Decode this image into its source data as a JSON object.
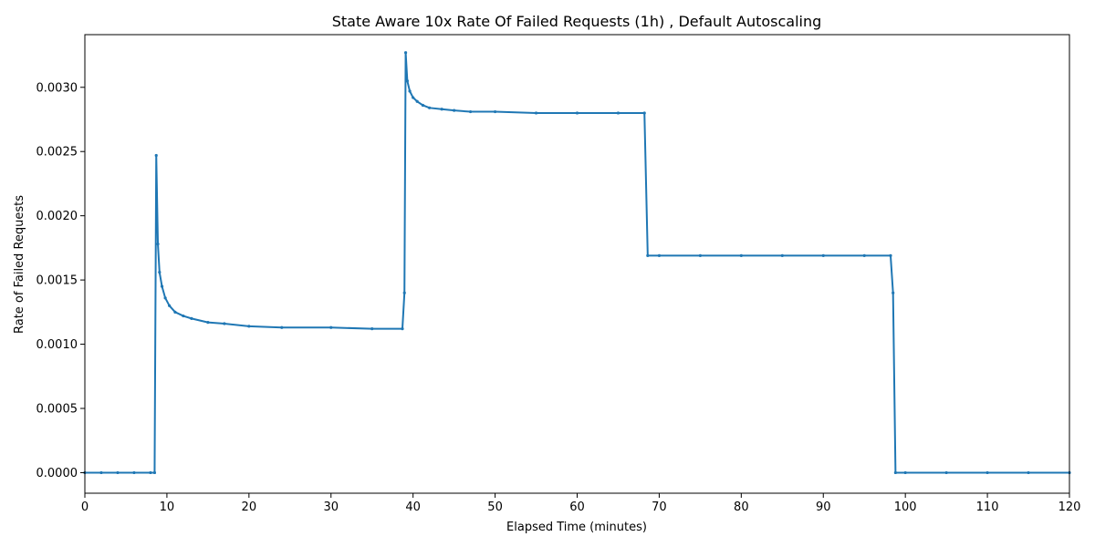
{
  "chart_data": {
    "type": "line",
    "title": "State Aware 10x Rate Of Failed Requests (1h) , Default Autoscaling",
    "xlabel": "Elapsed Time (minutes)",
    "ylabel": "Rate of Failed Requests",
    "xlim": [
      0,
      120
    ],
    "ylim": [
      -0.00016,
      0.00341
    ],
    "xticks": [
      0,
      10,
      20,
      30,
      40,
      50,
      60,
      70,
      80,
      90,
      100,
      110,
      120
    ],
    "yticks": [
      "0.0000",
      "0.0005",
      "0.0010",
      "0.0015",
      "0.0020",
      "0.0025",
      "0.0030"
    ],
    "ytick_values": [
      0,
      0.0005,
      0.001,
      0.0015,
      0.002,
      0.0025,
      0.003
    ],
    "grid": false,
    "legend": "none",
    "series": [
      {
        "color": "#1f77b4",
        "x": [
          0,
          2,
          4,
          6,
          8,
          8.5,
          8.7,
          8.9,
          9.1,
          9.4,
          9.8,
          10.3,
          11,
          12,
          13,
          15,
          17,
          20,
          24,
          30,
          35,
          38.7,
          38.95,
          39.1,
          39.3,
          39.6,
          40,
          40.5,
          41.2,
          42,
          43.5,
          45,
          47,
          50,
          55,
          60,
          65,
          68.2,
          68.6,
          70,
          75,
          80,
          85,
          90,
          95,
          98.2,
          98.5,
          98.8,
          100,
          105,
          110,
          115,
          120
        ],
        "y": [
          0,
          0,
          0,
          0,
          0,
          0,
          0.00247,
          0.00178,
          0.00156,
          0.00145,
          0.00136,
          0.0013,
          0.00125,
          0.00122,
          0.0012,
          0.00117,
          0.00116,
          0.00114,
          0.00113,
          0.00113,
          0.00112,
          0.00112,
          0.0014,
          0.00327,
          0.00305,
          0.00297,
          0.00292,
          0.00289,
          0.00286,
          0.00284,
          0.00283,
          0.00282,
          0.00281,
          0.00281,
          0.0028,
          0.0028,
          0.0028,
          0.0028,
          0.00169,
          0.00169,
          0.00169,
          0.00169,
          0.00169,
          0.00169,
          0.00169,
          0.00169,
          0.0014,
          0,
          0,
          0,
          0,
          0,
          0
        ]
      }
    ]
  }
}
